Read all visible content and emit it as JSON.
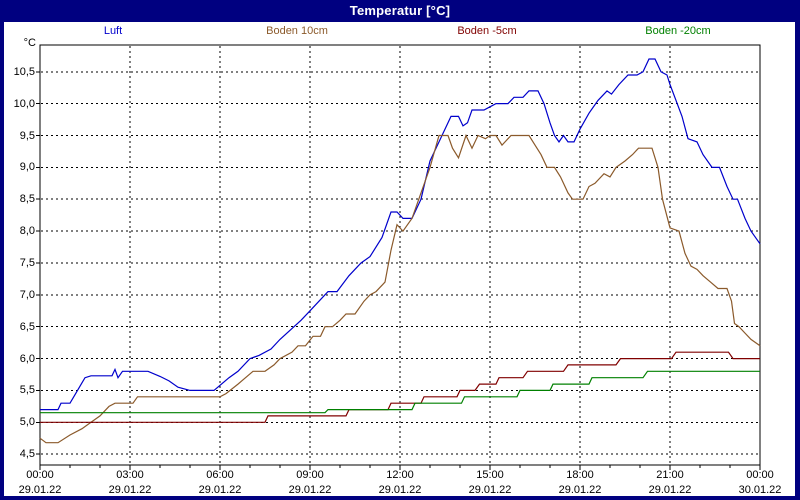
{
  "window": {
    "title": "Temperatur [°C]"
  },
  "colors": {
    "titlebar_bg": "#000080",
    "titlebar_text": "#ffffff",
    "window_border": "#000080",
    "content_bg": "#ffffff",
    "plot_border": "#000000",
    "grid": "#000000",
    "axis_text": "#000000"
  },
  "legend": [
    {
      "label": "Luft",
      "color": "#0000cc"
    },
    {
      "label": "Boden 10cm",
      "color": "#8b5a2b"
    },
    {
      "label": "Boden -5cm",
      "color": "#800000"
    },
    {
      "label": "Boden -20cm",
      "color": "#008000"
    }
  ],
  "chart_data": {
    "type": "line",
    "title": "Temperatur [°C]",
    "ylabel": "°C",
    "grid": "dashed",
    "legend_position": "top",
    "ylim_drawn": [
      4.33,
      10.92
    ],
    "y_axis": {
      "unit_label": "°C",
      "min": 4.5,
      "max": 10.5,
      "tick_step": 0.5,
      "tick_labels": [
        "10,5",
        "10,0",
        "9,5",
        "9,0",
        "8,5",
        "8,0",
        "7,5",
        "7,0",
        "6,5",
        "6,0",
        "5,5",
        "5,0",
        "4,5"
      ]
    },
    "x_axis": {
      "range_hours": [
        0,
        24
      ],
      "major_tick_hours": 3,
      "minor_tick_hours": 1,
      "ticks": [
        {
          "time": "00:00",
          "date": "29.01.22"
        },
        {
          "time": "03:00",
          "date": "29.01.22"
        },
        {
          "time": "06:00",
          "date": "29.01.22"
        },
        {
          "time": "09:00",
          "date": "29.01.22"
        },
        {
          "time": "12:00",
          "date": "29.01.22"
        },
        {
          "time": "15:00",
          "date": "29.01.22"
        },
        {
          "time": "18:00",
          "date": "29.01.22"
        },
        {
          "time": "21:00",
          "date": "29.01.22"
        },
        {
          "time": "00:00",
          "date": "30.01.22"
        }
      ]
    },
    "series": [
      {
        "name": "Luft",
        "color": "#0000cc",
        "points": [
          [
            0,
            5.2
          ],
          [
            0.6,
            5.2
          ],
          [
            0.7,
            5.3
          ],
          [
            1.0,
            5.3
          ],
          [
            1.25,
            5.5
          ],
          [
            1.5,
            5.7
          ],
          [
            1.7,
            5.73
          ],
          [
            2.4,
            5.73
          ],
          [
            2.5,
            5.83
          ],
          [
            2.6,
            5.7
          ],
          [
            2.75,
            5.8
          ],
          [
            3.6,
            5.8
          ],
          [
            4.0,
            5.72
          ],
          [
            4.3,
            5.65
          ],
          [
            4.6,
            5.55
          ],
          [
            5.0,
            5.5
          ],
          [
            5.8,
            5.5
          ],
          [
            6.3,
            5.7
          ],
          [
            6.6,
            5.8
          ],
          [
            7.0,
            6.0
          ],
          [
            7.3,
            6.05
          ],
          [
            7.7,
            6.15
          ],
          [
            8.0,
            6.3
          ],
          [
            8.7,
            6.6
          ],
          [
            9.0,
            6.75
          ],
          [
            9.3,
            6.9
          ],
          [
            9.6,
            7.05
          ],
          [
            9.9,
            7.05
          ],
          [
            10.3,
            7.3
          ],
          [
            10.7,
            7.5
          ],
          [
            11.0,
            7.6
          ],
          [
            11.4,
            7.9
          ],
          [
            11.7,
            8.3
          ],
          [
            11.9,
            8.3
          ],
          [
            12.1,
            8.2
          ],
          [
            12.4,
            8.2
          ],
          [
            12.7,
            8.5
          ],
          [
            13.0,
            9.1
          ],
          [
            13.4,
            9.5
          ],
          [
            13.7,
            9.8
          ],
          [
            13.95,
            9.8
          ],
          [
            14.1,
            9.65
          ],
          [
            14.25,
            9.7
          ],
          [
            14.4,
            9.9
          ],
          [
            14.8,
            9.9
          ],
          [
            15.0,
            9.95
          ],
          [
            15.2,
            10.0
          ],
          [
            15.6,
            10.0
          ],
          [
            15.8,
            10.1
          ],
          [
            16.1,
            10.1
          ],
          [
            16.3,
            10.2
          ],
          [
            16.6,
            10.2
          ],
          [
            16.8,
            10.0
          ],
          [
            17.0,
            9.7
          ],
          [
            17.15,
            9.5
          ],
          [
            17.3,
            9.4
          ],
          [
            17.45,
            9.5
          ],
          [
            17.6,
            9.4
          ],
          [
            17.8,
            9.4
          ],
          [
            18.0,
            9.6
          ],
          [
            18.3,
            9.85
          ],
          [
            18.6,
            10.05
          ],
          [
            18.9,
            10.2
          ],
          [
            19.05,
            10.15
          ],
          [
            19.3,
            10.3
          ],
          [
            19.6,
            10.45
          ],
          [
            19.9,
            10.45
          ],
          [
            20.1,
            10.5
          ],
          [
            20.3,
            10.7
          ],
          [
            20.5,
            10.7
          ],
          [
            20.7,
            10.5
          ],
          [
            20.9,
            10.45
          ],
          [
            21.0,
            10.3
          ],
          [
            21.2,
            10.05
          ],
          [
            21.4,
            9.8
          ],
          [
            21.6,
            9.45
          ],
          [
            21.9,
            9.4
          ],
          [
            22.1,
            9.2
          ],
          [
            22.4,
            9.0
          ],
          [
            22.65,
            9.0
          ],
          [
            22.9,
            8.7
          ],
          [
            23.1,
            8.5
          ],
          [
            23.25,
            8.5
          ],
          [
            23.5,
            8.2
          ],
          [
            23.7,
            8.0
          ],
          [
            24.0,
            7.8
          ]
        ]
      },
      {
        "name": "Boden 10cm",
        "color": "#8b5a2b",
        "points": [
          [
            0,
            4.75
          ],
          [
            0.2,
            4.68
          ],
          [
            0.6,
            4.68
          ],
          [
            1.0,
            4.8
          ],
          [
            1.4,
            4.9
          ],
          [
            1.7,
            5.0
          ],
          [
            2.0,
            5.1
          ],
          [
            2.3,
            5.25
          ],
          [
            2.5,
            5.3
          ],
          [
            3.1,
            5.3
          ],
          [
            3.25,
            5.4
          ],
          [
            6.0,
            5.4
          ],
          [
            6.2,
            5.45
          ],
          [
            6.6,
            5.6
          ],
          [
            7.1,
            5.8
          ],
          [
            7.5,
            5.8
          ],
          [
            7.8,
            5.9
          ],
          [
            8.0,
            6.0
          ],
          [
            8.4,
            6.1
          ],
          [
            8.6,
            6.2
          ],
          [
            8.85,
            6.2
          ],
          [
            9.1,
            6.35
          ],
          [
            9.35,
            6.35
          ],
          [
            9.5,
            6.5
          ],
          [
            9.75,
            6.5
          ],
          [
            10.0,
            6.6
          ],
          [
            10.2,
            6.7
          ],
          [
            10.5,
            6.7
          ],
          [
            10.8,
            6.9
          ],
          [
            11.0,
            7.0
          ],
          [
            11.2,
            7.05
          ],
          [
            11.5,
            7.2
          ],
          [
            11.7,
            7.7
          ],
          [
            11.9,
            8.1
          ],
          [
            12.1,
            8.0
          ],
          [
            12.4,
            8.2
          ],
          [
            12.7,
            8.6
          ],
          [
            13.0,
            9.0
          ],
          [
            13.3,
            9.5
          ],
          [
            13.6,
            9.5
          ],
          [
            13.75,
            9.3
          ],
          [
            13.95,
            9.15
          ],
          [
            14.2,
            9.5
          ],
          [
            14.4,
            9.3
          ],
          [
            14.6,
            9.5
          ],
          [
            14.85,
            9.45
          ],
          [
            15.0,
            9.5
          ],
          [
            15.2,
            9.5
          ],
          [
            15.4,
            9.35
          ],
          [
            15.7,
            9.5
          ],
          [
            16.3,
            9.5
          ],
          [
            16.5,
            9.35
          ],
          [
            16.7,
            9.2
          ],
          [
            16.9,
            9.0
          ],
          [
            17.15,
            9.0
          ],
          [
            17.35,
            8.85
          ],
          [
            17.6,
            8.6
          ],
          [
            17.75,
            8.5
          ],
          [
            18.1,
            8.5
          ],
          [
            18.3,
            8.7
          ],
          [
            18.5,
            8.75
          ],
          [
            18.8,
            8.9
          ],
          [
            19.0,
            8.85
          ],
          [
            19.2,
            9.0
          ],
          [
            19.5,
            9.1
          ],
          [
            19.75,
            9.2
          ],
          [
            19.95,
            9.3
          ],
          [
            20.4,
            9.3
          ],
          [
            20.6,
            9.0
          ],
          [
            20.75,
            8.5
          ],
          [
            21.0,
            8.05
          ],
          [
            21.3,
            8.0
          ],
          [
            21.5,
            7.65
          ],
          [
            21.7,
            7.45
          ],
          [
            21.9,
            7.4
          ],
          [
            22.1,
            7.3
          ],
          [
            22.35,
            7.2
          ],
          [
            22.6,
            7.1
          ],
          [
            22.9,
            7.1
          ],
          [
            23.05,
            6.9
          ],
          [
            23.15,
            6.55
          ],
          [
            23.3,
            6.5
          ],
          [
            23.5,
            6.4
          ],
          [
            23.7,
            6.3
          ],
          [
            24.0,
            6.2
          ]
        ]
      },
      {
        "name": "Boden -5cm",
        "color": "#800000",
        "points": [
          [
            0,
            5.0
          ],
          [
            7.5,
            5.0
          ],
          [
            7.6,
            5.1
          ],
          [
            10.2,
            5.1
          ],
          [
            10.3,
            5.2
          ],
          [
            11.6,
            5.2
          ],
          [
            11.7,
            5.3
          ],
          [
            12.7,
            5.3
          ],
          [
            12.8,
            5.4
          ],
          [
            13.9,
            5.4
          ],
          [
            14.0,
            5.5
          ],
          [
            14.5,
            5.5
          ],
          [
            14.65,
            5.6
          ],
          [
            15.2,
            5.6
          ],
          [
            15.3,
            5.7
          ],
          [
            16.1,
            5.7
          ],
          [
            16.25,
            5.8
          ],
          [
            17.45,
            5.8
          ],
          [
            17.6,
            5.9
          ],
          [
            19.2,
            5.9
          ],
          [
            19.35,
            6.0
          ],
          [
            21.05,
            6.0
          ],
          [
            21.2,
            6.1
          ],
          [
            22.95,
            6.1
          ],
          [
            23.1,
            6.0
          ],
          [
            24.0,
            6.0
          ]
        ]
      },
      {
        "name": "Boden -20cm",
        "color": "#008000",
        "points": [
          [
            0,
            5.15
          ],
          [
            9.5,
            5.15
          ],
          [
            9.6,
            5.2
          ],
          [
            12.4,
            5.2
          ],
          [
            12.5,
            5.3
          ],
          [
            14.05,
            5.3
          ],
          [
            14.15,
            5.4
          ],
          [
            15.9,
            5.4
          ],
          [
            16.0,
            5.5
          ],
          [
            17.0,
            5.5
          ],
          [
            17.1,
            5.6
          ],
          [
            18.3,
            5.6
          ],
          [
            18.4,
            5.7
          ],
          [
            20.1,
            5.7
          ],
          [
            20.25,
            5.8
          ],
          [
            24.0,
            5.8
          ]
        ]
      }
    ]
  }
}
